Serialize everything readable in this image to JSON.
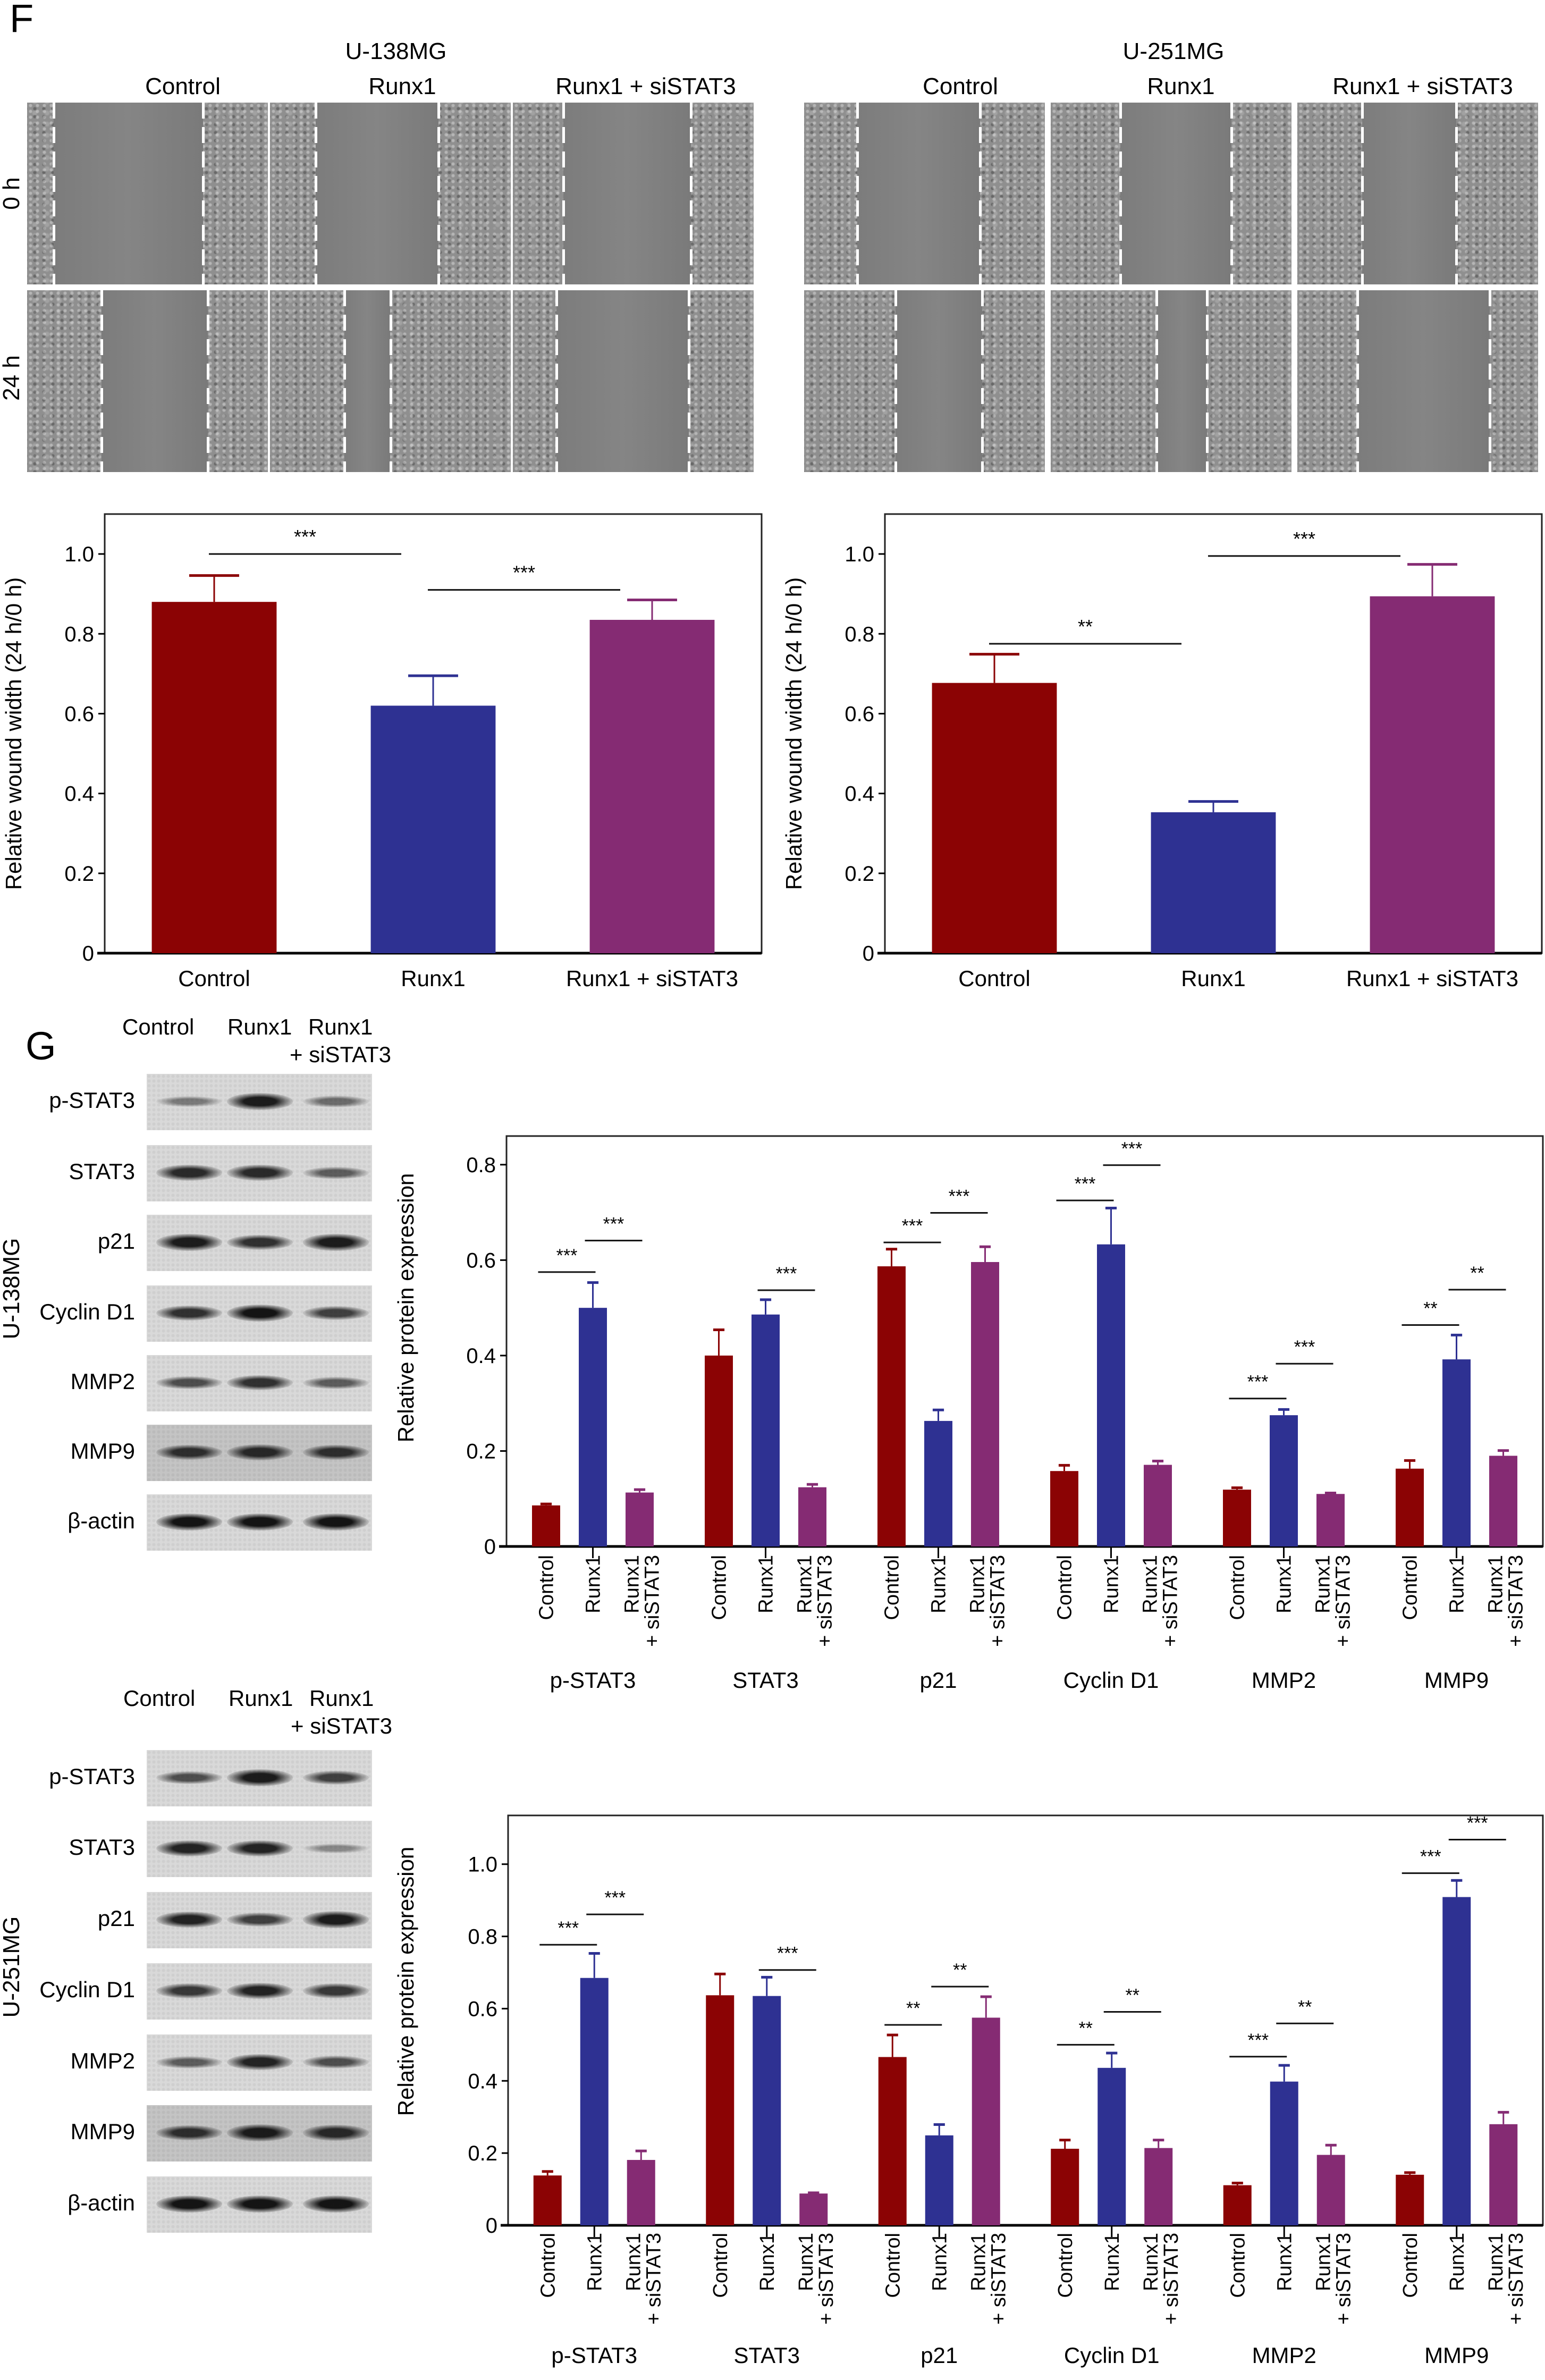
{
  "figure": {
    "panel_f": "F",
    "panel_g": "G"
  },
  "wound_assay": {
    "timepoints": [
      "0 h",
      "24 h"
    ],
    "groups": [
      {
        "cell_line": "U-138MG",
        "conditions": [
          "Control",
          "Runx1",
          "Runx1 + siSTAT3"
        ]
      },
      {
        "cell_line": "U-251MG",
        "conditions": [
          "Control",
          "Runx1",
          "Runx1 + siSTAT3"
        ]
      }
    ]
  },
  "blots": [
    {
      "cell_line": "U-138MG",
      "header": {
        "control": "Control",
        "runx1": "Runx1",
        "combo_1": "Runx1",
        "combo_2": "+ siSTAT3"
      },
      "proteins": [
        "p-STAT3",
        "STAT3",
        "p21",
        "Cyclin D1",
        "MMP2",
        "MMP9",
        "β-actin"
      ]
    },
    {
      "cell_line": "U-251MG",
      "header": {
        "control": "Control",
        "runx1": "Runx1",
        "combo_1": "Runx1",
        "combo_2": "+ siSTAT3"
      },
      "proteins": [
        "p-STAT3",
        "STAT3",
        "p21",
        "Cyclin D1",
        "MMP2",
        "MMP9",
        "β-actin"
      ]
    }
  ],
  "colors": {
    "control": "#8B0304",
    "runx1": "#2E3192",
    "runx1_sistat3": "#852B73"
  },
  "chart_data": [
    {
      "type": "bar",
      "title": "",
      "xlabel": "",
      "ylabel": "Relative wound width (24 h/0 h)",
      "ylim": [
        0,
        1.1
      ],
      "yticks": [
        "0",
        "0.2",
        "0.4",
        "0.6",
        "0.8",
        "1.0"
      ],
      "grid": false,
      "categories": [
        "Control",
        "Runx1",
        "Runx1 + siSTAT3"
      ],
      "values": [
        0.88,
        0.62,
        0.835
      ],
      "errors": [
        0.066,
        0.075,
        0.05
      ],
      "significance": [
        {
          "from": 0,
          "to": 1,
          "y": 1.0,
          "label": "***"
        },
        {
          "from": 1,
          "to": 2,
          "y": 0.91,
          "label": "***"
        }
      ]
    },
    {
      "type": "bar",
      "title": "",
      "xlabel": "",
      "ylabel": "Relative wound width (24 h/0 h)",
      "ylim": [
        0,
        1.1
      ],
      "yticks": [
        "0",
        "0.2",
        "0.4",
        "0.6",
        "0.8",
        "1.0"
      ],
      "grid": false,
      "categories": [
        "Control",
        "Runx1",
        "Runx1 + siSTAT3"
      ],
      "values": [
        0.677,
        0.353,
        0.894
      ],
      "errors": [
        0.072,
        0.027,
        0.08
      ],
      "significance": [
        {
          "from": 0,
          "to": 1,
          "y": 0.775,
          "label": "**"
        },
        {
          "from": 1,
          "to": 2,
          "y": 0.995,
          "label": "***"
        }
      ]
    },
    {
      "type": "bar",
      "title": "",
      "xlabel": "",
      "ylabel": "Relative protein expression",
      "ylim": [
        0,
        0.86
      ],
      "yticks": [
        "0",
        "0.2",
        "0.4",
        "0.6",
        "0.8"
      ],
      "grid": false,
      "categories": [
        "p-STAT3",
        "STAT3",
        "p21",
        "Cyclin D1",
        "MMP2",
        "MMP9"
      ],
      "series": [
        {
          "name": "Control",
          "values": [
            0.086,
            0.4,
            0.587,
            0.158,
            0.119,
            0.163
          ],
          "errors": [
            0.003,
            0.054,
            0.036,
            0.012,
            0.004,
            0.017
          ]
        },
        {
          "name": "Runx1",
          "values": [
            0.5,
            0.486,
            0.263,
            0.633,
            0.275,
            0.392
          ],
          "errors": [
            0.053,
            0.031,
            0.023,
            0.076,
            0.012,
            0.051
          ]
        },
        {
          "name": "Runx1 + siSTAT3",
          "values": [
            0.113,
            0.124,
            0.596,
            0.171,
            0.11,
            0.19
          ],
          "errors": [
            0.006,
            0.006,
            0.032,
            0.008,
            0.002,
            0.011
          ]
        }
      ],
      "significance": [
        {
          "group": 0,
          "from": 0,
          "to": 1,
          "y": 0.575,
          "label": "***"
        },
        {
          "group": 0,
          "from": 1,
          "to": 2,
          "y": 0.641,
          "label": "***"
        },
        {
          "group": 1,
          "from": 1,
          "to": 2,
          "y": 0.537,
          "label": "***"
        },
        {
          "group": 2,
          "from": 0,
          "to": 1,
          "y": 0.637,
          "label": "***"
        },
        {
          "group": 2,
          "from": 1,
          "to": 2,
          "y": 0.699,
          "label": "***"
        },
        {
          "group": 3,
          "from": 0,
          "to": 1,
          "y": 0.725,
          "label": "***"
        },
        {
          "group": 3,
          "from": 1,
          "to": 2,
          "y": 0.799,
          "label": "***"
        },
        {
          "group": 4,
          "from": 0,
          "to": 1,
          "y": 0.31,
          "label": "***"
        },
        {
          "group": 4,
          "from": 1,
          "to": 2,
          "y": 0.383,
          "label": "***"
        },
        {
          "group": 5,
          "from": 0,
          "to": 1,
          "y": 0.464,
          "label": "**"
        },
        {
          "group": 5,
          "from": 1,
          "to": 2,
          "y": 0.538,
          "label": "**"
        }
      ]
    },
    {
      "type": "bar",
      "title": "",
      "xlabel": "",
      "ylabel": "Relative protein expression",
      "ylim": [
        0,
        1.135
      ],
      "yticks": [
        "0",
        "0.2",
        "0.4",
        "0.6",
        "0.8",
        "1.0"
      ],
      "grid": false,
      "categories": [
        "p-STAT3",
        "STAT3",
        "p21",
        "Cyclin D1",
        "MMP2",
        "MMP9"
      ],
      "series": [
        {
          "name": "Control",
          "values": [
            0.138,
            0.637,
            0.466,
            0.212,
            0.111,
            0.14
          ],
          "errors": [
            0.011,
            0.059,
            0.061,
            0.024,
            0.006,
            0.006
          ]
        },
        {
          "name": "Runx1",
          "values": [
            0.685,
            0.635,
            0.249,
            0.436,
            0.398,
            0.909
          ],
          "errors": [
            0.068,
            0.052,
            0.03,
            0.041,
            0.045,
            0.046
          ]
        },
        {
          "name": "Runx1 + siSTAT3",
          "values": [
            0.181,
            0.088,
            0.575,
            0.214,
            0.195,
            0.28
          ],
          "errors": [
            0.025,
            0.002,
            0.058,
            0.022,
            0.027,
            0.033
          ]
        }
      ],
      "significance": [
        {
          "group": 0,
          "from": 0,
          "to": 1,
          "y": 0.777,
          "label": "***"
        },
        {
          "group": 0,
          "from": 1,
          "to": 2,
          "y": 0.861,
          "label": "***"
        },
        {
          "group": 1,
          "from": 1,
          "to": 2,
          "y": 0.707,
          "label": "***"
        },
        {
          "group": 2,
          "from": 0,
          "to": 1,
          "y": 0.555,
          "label": "**"
        },
        {
          "group": 2,
          "from": 1,
          "to": 2,
          "y": 0.661,
          "label": "**"
        },
        {
          "group": 3,
          "from": 0,
          "to": 1,
          "y": 0.5,
          "label": "**"
        },
        {
          "group": 3,
          "from": 1,
          "to": 2,
          "y": 0.591,
          "label": "**"
        },
        {
          "group": 4,
          "from": 0,
          "to": 1,
          "y": 0.467,
          "label": "***"
        },
        {
          "group": 4,
          "from": 1,
          "to": 2,
          "y": 0.559,
          "label": "**"
        },
        {
          "group": 5,
          "from": 0,
          "to": 1,
          "y": 0.975,
          "label": "***"
        },
        {
          "group": 5,
          "from": 1,
          "to": 2,
          "y": 1.068,
          "label": "***"
        }
      ]
    }
  ]
}
